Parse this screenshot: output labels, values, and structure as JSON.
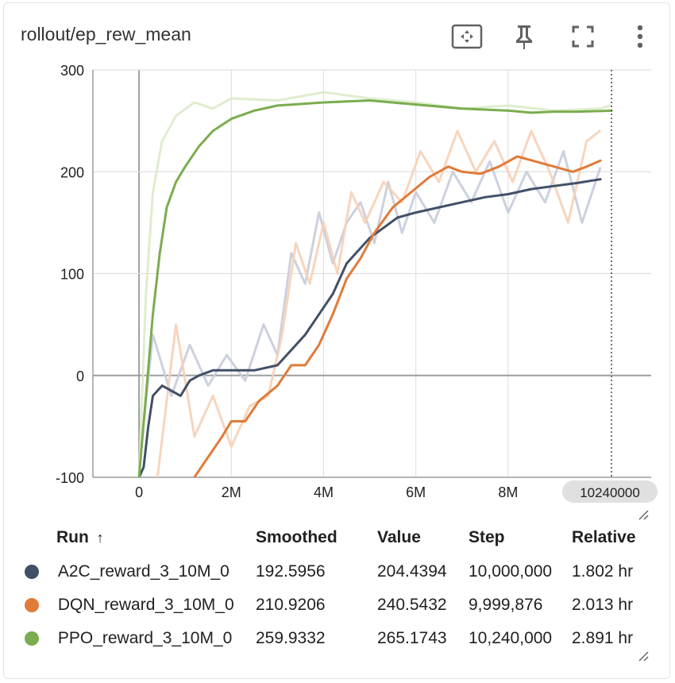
{
  "title": "rollout/ep_rew_mean",
  "toolbar": {
    "icons": [
      "fit-domain-icon",
      "pin-icon",
      "fullscreen-icon",
      "more-vert-icon"
    ]
  },
  "chart_data": {
    "type": "line",
    "x_label_unit": "steps",
    "xlim": [
      -1000000,
      11100000
    ],
    "ylim": [
      -100,
      300
    ],
    "x_ticks": [
      {
        "value": 0,
        "label": "0"
      },
      {
        "value": 2000000,
        "label": "2M"
      },
      {
        "value": 4000000,
        "label": "4M"
      },
      {
        "value": 6000000,
        "label": "6M"
      },
      {
        "value": 8000000,
        "label": "8M"
      }
    ],
    "y_ticks": [
      {
        "value": -100,
        "label": "-100"
      },
      {
        "value": 0,
        "label": "0"
      },
      {
        "value": 100,
        "label": "100"
      },
      {
        "value": 200,
        "label": "200"
      },
      {
        "value": 300,
        "label": "300"
      }
    ],
    "hover_step": 10240000,
    "hover_step_label": "10240000",
    "grid": true,
    "series": [
      {
        "name": "A2C_reward_3_10M_0",
        "color": "#425066",
        "raw_color": "#c6ccda",
        "smoothed": [
          [
            0,
            -100
          ],
          [
            100000,
            -90
          ],
          [
            200000,
            -50
          ],
          [
            300000,
            -20
          ],
          [
            500000,
            -10
          ],
          [
            700000,
            -15
          ],
          [
            900000,
            -20
          ],
          [
            1100000,
            -5
          ],
          [
            1300000,
            0
          ],
          [
            1600000,
            5
          ],
          [
            2000000,
            5
          ],
          [
            2500000,
            5
          ],
          [
            3000000,
            10
          ],
          [
            3300000,
            25
          ],
          [
            3600000,
            40
          ],
          [
            3900000,
            60
          ],
          [
            4200000,
            80
          ],
          [
            4500000,
            110
          ],
          [
            4800000,
            125
          ],
          [
            5000000,
            135
          ],
          [
            5300000,
            145
          ],
          [
            5600000,
            155
          ],
          [
            6000000,
            160
          ],
          [
            6500000,
            165
          ],
          [
            7000000,
            170
          ],
          [
            7500000,
            175
          ],
          [
            8000000,
            178
          ],
          [
            8500000,
            183
          ],
          [
            9000000,
            186
          ],
          [
            9500000,
            189
          ],
          [
            10000000,
            192.6
          ]
        ],
        "raw": [
          [
            0,
            -90
          ],
          [
            300000,
            40
          ],
          [
            700000,
            -20
          ],
          [
            1100000,
            30
          ],
          [
            1500000,
            -10
          ],
          [
            1900000,
            20
          ],
          [
            2300000,
            -5
          ],
          [
            2700000,
            50
          ],
          [
            3000000,
            20
          ],
          [
            3300000,
            120
          ],
          [
            3600000,
            90
          ],
          [
            3900000,
            160
          ],
          [
            4200000,
            110
          ],
          [
            4500000,
            150
          ],
          [
            4800000,
            170
          ],
          [
            5100000,
            130
          ],
          [
            5400000,
            190
          ],
          [
            5700000,
            140
          ],
          [
            6000000,
            180
          ],
          [
            6400000,
            150
          ],
          [
            6800000,
            200
          ],
          [
            7200000,
            170
          ],
          [
            7600000,
            210
          ],
          [
            8000000,
            160
          ],
          [
            8400000,
            200
          ],
          [
            8800000,
            170
          ],
          [
            9200000,
            220
          ],
          [
            9600000,
            150
          ],
          [
            10000000,
            204.4
          ]
        ]
      },
      {
        "name": "DQN_reward_3_10M_0",
        "color": "#e07b39",
        "raw_color": "#f6d0b6",
        "smoothed": [
          [
            1200000,
            -100
          ],
          [
            1500000,
            -80
          ],
          [
            1800000,
            -60
          ],
          [
            2000000,
            -45
          ],
          [
            2300000,
            -45
          ],
          [
            2600000,
            -25
          ],
          [
            3000000,
            -10
          ],
          [
            3300000,
            10
          ],
          [
            3600000,
            10
          ],
          [
            3900000,
            30
          ],
          [
            4200000,
            60
          ],
          [
            4500000,
            95
          ],
          [
            4800000,
            115
          ],
          [
            5100000,
            140
          ],
          [
            5500000,
            165
          ],
          [
            5900000,
            180
          ],
          [
            6300000,
            195
          ],
          [
            6700000,
            205
          ],
          [
            7000000,
            200
          ],
          [
            7400000,
            198
          ],
          [
            7800000,
            205
          ],
          [
            8200000,
            215
          ],
          [
            8600000,
            210
          ],
          [
            9000000,
            205
          ],
          [
            9400000,
            200
          ],
          [
            9700000,
            205
          ],
          [
            10000000,
            210.9
          ]
        ],
        "raw": [
          [
            400000,
            -100
          ],
          [
            800000,
            50
          ],
          [
            1200000,
            -60
          ],
          [
            1600000,
            -20
          ],
          [
            2000000,
            -70
          ],
          [
            2400000,
            -30
          ],
          [
            2800000,
            -20
          ],
          [
            3100000,
            40
          ],
          [
            3400000,
            130
          ],
          [
            3700000,
            90
          ],
          [
            4000000,
            150
          ],
          [
            4300000,
            100
          ],
          [
            4600000,
            180
          ],
          [
            4900000,
            150
          ],
          [
            5300000,
            190
          ],
          [
            5700000,
            170
          ],
          [
            6100000,
            220
          ],
          [
            6500000,
            190
          ],
          [
            6900000,
            240
          ],
          [
            7300000,
            200
          ],
          [
            7700000,
            230
          ],
          [
            8100000,
            190
          ],
          [
            8500000,
            240
          ],
          [
            8900000,
            200
          ],
          [
            9300000,
            150
          ],
          [
            9700000,
            230
          ],
          [
            9999876,
            240.5
          ]
        ]
      },
      {
        "name": "PPO_reward_3_10M_0",
        "color": "#7bac4f",
        "raw_color": "#dcebc8",
        "smoothed": [
          [
            0,
            -100
          ],
          [
            150000,
            -20
          ],
          [
            300000,
            60
          ],
          [
            450000,
            120
          ],
          [
            600000,
            165
          ],
          [
            800000,
            190
          ],
          [
            1000000,
            205
          ],
          [
            1300000,
            225
          ],
          [
            1600000,
            240
          ],
          [
            2000000,
            252
          ],
          [
            2500000,
            260
          ],
          [
            3000000,
            265
          ],
          [
            4000000,
            268
          ],
          [
            5000000,
            270
          ],
          [
            6000000,
            266
          ],
          [
            7000000,
            262
          ],
          [
            8000000,
            260
          ],
          [
            8500000,
            258
          ],
          [
            9000000,
            259
          ],
          [
            9500000,
            259
          ],
          [
            10240000,
            259.9
          ]
        ],
        "raw": [
          [
            0,
            -100
          ],
          [
            150000,
            80
          ],
          [
            300000,
            180
          ],
          [
            500000,
            230
          ],
          [
            800000,
            255
          ],
          [
            1200000,
            268
          ],
          [
            1600000,
            262
          ],
          [
            2000000,
            272
          ],
          [
            3000000,
            270
          ],
          [
            4000000,
            278
          ],
          [
            5000000,
            272
          ],
          [
            6000000,
            268
          ],
          [
            7000000,
            262
          ],
          [
            8000000,
            265
          ],
          [
            9000000,
            260
          ],
          [
            10000000,
            262
          ],
          [
            10240000,
            265.2
          ]
        ]
      }
    ]
  },
  "table": {
    "headers": {
      "run": "Run",
      "sort_arrow": "↑",
      "smoothed": "Smoothed",
      "value": "Value",
      "step": "Step",
      "relative": "Relative"
    },
    "rows": [
      {
        "color": "#425066",
        "run": "A2C_reward_3_10M_0",
        "smoothed": "192.5956",
        "value": "204.4394",
        "step": "10,000,000",
        "relative": "1.802 hr"
      },
      {
        "color": "#e07b39",
        "run": "DQN_reward_3_10M_0",
        "smoothed": "210.9206",
        "value": "240.5432",
        "step": "9,999,876",
        "relative": "2.013 hr"
      },
      {
        "color": "#7bac4f",
        "run": "PPO_reward_3_10M_0",
        "smoothed": "259.9332",
        "value": "265.1743",
        "step": "10,240,000",
        "relative": "2.891 hr"
      }
    ]
  }
}
